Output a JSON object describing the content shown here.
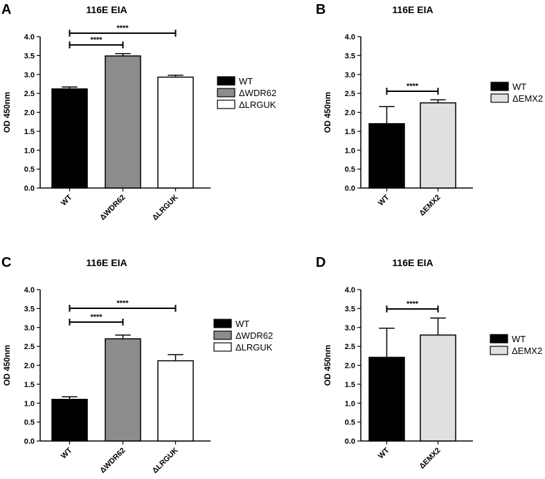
{
  "chart_data": [
    {
      "panel": "A",
      "type": "bar",
      "title": "116E EIA",
      "ylabel": "OD 450nm",
      "xlabel": "",
      "ylim": [
        0,
        4.0
      ],
      "yticks": [
        "0.0",
        "0.5",
        "1.0",
        "1.5",
        "2.0",
        "2.5",
        "3.0",
        "3.5",
        "4.0"
      ],
      "categories": [
        "WT",
        "ΔWDR62",
        "ΔLRGUK"
      ],
      "values": [
        2.62,
        3.49,
        2.93
      ],
      "errors": [
        0.05,
        0.06,
        0.05
      ],
      "colors": [
        "#000000",
        "#8c8c8c",
        "#ffffff"
      ],
      "legend": [
        "WT",
        "ΔWDR62",
        "ΔLRGUK"
      ],
      "significance": [
        {
          "from": 0,
          "to": 1,
          "label": "****"
        },
        {
          "from": 0,
          "to": 2,
          "label": "****"
        }
      ]
    },
    {
      "panel": "B",
      "type": "bar",
      "title": "116E EIA",
      "ylabel": "OD 450nm",
      "xlabel": "",
      "ylim": [
        0,
        4.0
      ],
      "yticks": [
        "0.0",
        "0.5",
        "1.0",
        "1.5",
        "2.0",
        "2.5",
        "3.0",
        "3.5",
        "4.0"
      ],
      "categories": [
        "WT",
        "ΔEMX2"
      ],
      "values": [
        1.7,
        2.25
      ],
      "errors": [
        0.45,
        0.08
      ],
      "colors": [
        "#000000",
        "#e0e0e0"
      ],
      "legend": [
        "WT",
        "ΔEMX2"
      ],
      "significance": [
        {
          "from": 0,
          "to": 1,
          "label": "****"
        }
      ]
    },
    {
      "panel": "C",
      "type": "bar",
      "title": "116E EIA",
      "ylabel": "OD 450nm",
      "xlabel": "",
      "ylim": [
        0,
        4.0
      ],
      "yticks": [
        "0.0",
        "0.5",
        "1.0",
        "1.5",
        "2.0",
        "2.5",
        "3.0",
        "3.5",
        "4.0"
      ],
      "categories": [
        "WT",
        "ΔWDR62",
        "ΔLRGUK"
      ],
      "values": [
        1.1,
        2.7,
        2.12
      ],
      "errors": [
        0.07,
        0.1,
        0.16
      ],
      "colors": [
        "#000000",
        "#8c8c8c",
        "#ffffff"
      ],
      "legend": [
        "WT",
        "ΔWDR62",
        "ΔLRGUK"
      ],
      "significance": [
        {
          "from": 0,
          "to": 1,
          "label": "****"
        },
        {
          "from": 0,
          "to": 2,
          "label": "****"
        }
      ]
    },
    {
      "panel": "D",
      "type": "bar",
      "title": "116E EIA",
      "ylabel": "OD 450nm",
      "xlabel": "",
      "ylim": [
        0,
        4.0
      ],
      "yticks": [
        "0.0",
        "0.5",
        "1.0",
        "1.5",
        "2.0",
        "2.5",
        "3.0",
        "3.5",
        "4.0"
      ],
      "categories": [
        "WT",
        "ΔEMX2"
      ],
      "values": [
        2.21,
        2.8
      ],
      "errors": [
        0.77,
        0.45
      ],
      "colors": [
        "#000000",
        "#e0e0e0"
      ],
      "legend": [
        "WT",
        "ΔEMX2"
      ],
      "significance": [
        {
          "from": 0,
          "to": 1,
          "label": "****"
        }
      ]
    }
  ]
}
